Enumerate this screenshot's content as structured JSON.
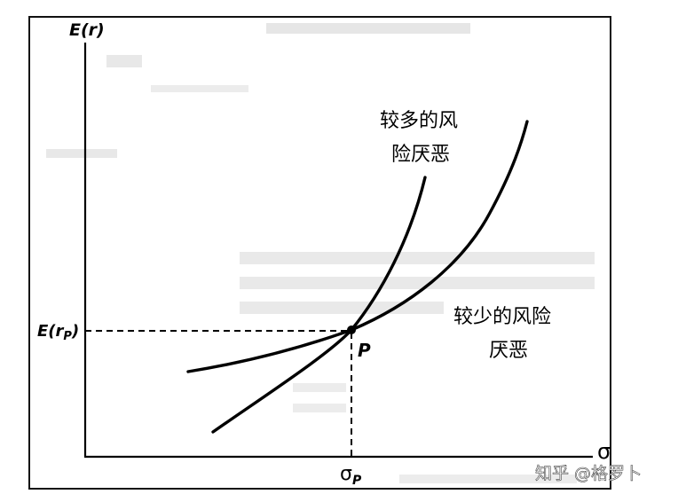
{
  "axes": {
    "y_label": "E(r)",
    "x_label": "σ",
    "y_marker": {
      "main": "E(r",
      "sub": "P",
      "close": ")"
    },
    "x_marker": {
      "main": "σ",
      "sub": "P"
    }
  },
  "point_label": "P",
  "curves": [
    {
      "name": "more-risk-averse",
      "label_line1": "较多的风",
      "label_line2": "险厌恶"
    },
    {
      "name": "less-risk-averse",
      "label_line1": "较少的风险",
      "label_line2": "厌恶"
    }
  ],
  "watermark": "知乎 @格罗卜",
  "colors": {
    "ink": "#000000",
    "background": "#ffffff",
    "faint": "#bdbdbd"
  }
}
